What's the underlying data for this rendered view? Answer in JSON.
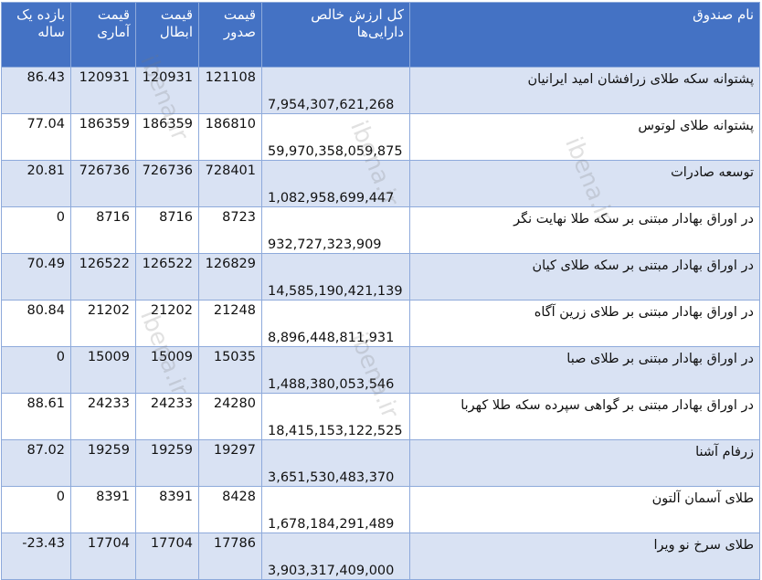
{
  "table": {
    "headers": {
      "name": "نام صندوق",
      "nav": "کل ارزش خالص دارایی‌ها",
      "issue": "قیمت صدور",
      "redeem": "قیمت ابطال",
      "stat": "قیمت آماری",
      "ret": "بازده یک ساله"
    },
    "rows": [
      {
        "name": "پشتوانه سکه طلای زرافشان امید ایرانیان",
        "nav": "7,954,307,621,268",
        "issue": "121108",
        "redeem": "120931",
        "stat": "120931",
        "ret": "86.43"
      },
      {
        "name": "پشتوانه طلای لوتوس",
        "nav": "59,970,358,059,875",
        "issue": "186810",
        "redeem": "186359",
        "stat": "186359",
        "ret": "77.04"
      },
      {
        "name": "توسعه صادرات",
        "nav": "1,082,958,699,447",
        "issue": "728401",
        "redeem": "726736",
        "stat": "726736",
        "ret": "20.81"
      },
      {
        "name": "در اوراق بهادار مبتنی بر سکه طلا نهایت نگر",
        "nav": "932,727,323,909",
        "issue": "8723",
        "redeem": "8716",
        "stat": "8716",
        "ret": "0"
      },
      {
        "name": "در اوراق بهادار مبتنی بر سکه طلای کیان",
        "nav": "14,585,190,421,139",
        "issue": "126829",
        "redeem": "126522",
        "stat": "126522",
        "ret": "70.49"
      },
      {
        "name": "در اوراق بهادار مبتنی بر طلای زرین آگاه",
        "nav": "8,896,448,811,931",
        "issue": "21248",
        "redeem": "21202",
        "stat": "21202",
        "ret": "80.84"
      },
      {
        "name": "در اوراق بهادار مبتنی بر طلای صبا",
        "nav": "1,488,380,053,546",
        "issue": "15035",
        "redeem": "15009",
        "stat": "15009",
        "ret": "0"
      },
      {
        "name": "در اوراق بهادار مبتنی بر گواهی سپرده سکه طلا کهربا",
        "nav": "18,415,153,122,525",
        "issue": "24280",
        "redeem": "24233",
        "stat": "24233",
        "ret": "88.61"
      },
      {
        "name": "زرفام آشنا",
        "nav": "3,651,530,483,370",
        "issue": "19297",
        "redeem": "19259",
        "stat": "19259",
        "ret": "87.02"
      },
      {
        "name": "طلای آسمان آلتون",
        "nav": "1,678,184,291,489",
        "issue": "8428",
        "redeem": "8391",
        "stat": "8391",
        "ret": "0"
      },
      {
        "name": "طلای سرخ نو ویرا",
        "nav": "3,903,317,409,000",
        "issue": "17786",
        "redeem": "17704",
        "stat": "17704",
        "ret": "-23.43"
      }
    ]
  },
  "watermarks": [
    "ibena.ir",
    "ibena.ir",
    "ibena.ir",
    "ibena.ir",
    "ibena.ir"
  ]
}
